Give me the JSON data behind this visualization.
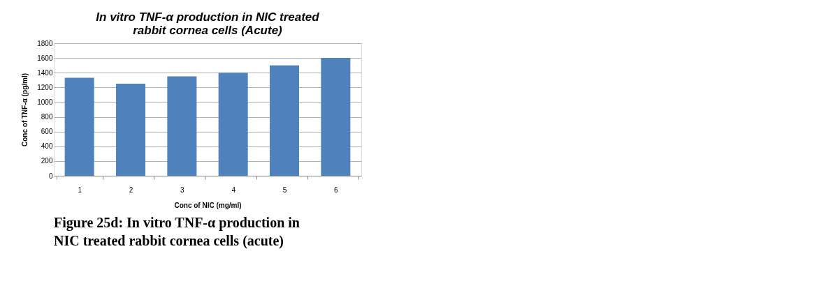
{
  "chart_data": {
    "type": "bar",
    "title": [
      "In vitro TNF-α production in NIC treated",
      "rabbit cornea cells (Acute)"
    ],
    "xlabel": "Conc of NIC (mg/ml)",
    "ylabel": "Conc of TNF-α (pg/ml)",
    "categories": [
      "1",
      "2",
      "3",
      "4",
      "5",
      "6"
    ],
    "values": [
      1330,
      1250,
      1350,
      1400,
      1500,
      1600
    ],
    "color": "#4f81bd",
    "ylim": [
      0,
      1800
    ],
    "yticks": [
      0,
      200,
      400,
      600,
      800,
      1000,
      1200,
      1400,
      1600,
      1800
    ],
    "grid": "y",
    "annotations": [
      "Figure 25d: In vitro TNF-α production in",
      "NIC treated rabbit cornea cells (acute)"
    ]
  }
}
